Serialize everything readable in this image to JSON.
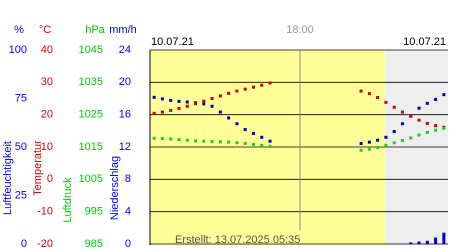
{
  "chart_data": {
    "type": "line",
    "time_label": "18:00",
    "date_left": "10.07.21",
    "date_right": "10.07.21",
    "footer": "Erstellt: 13.07.2025 05:35",
    "axes": [
      {
        "unit": "%",
        "color": "#0000ff",
        "ylim": [
          0,
          100
        ],
        "yticks": [
          0,
          25,
          50,
          75,
          100
        ]
      },
      {
        "unit": "°C",
        "color": "#dd0000",
        "ylim": [
          -20,
          40
        ],
        "yticks": [
          -20,
          -10,
          0,
          10,
          20,
          30,
          40
        ]
      },
      {
        "unit": "hPa",
        "color": "#00cc00",
        "ylim": [
          985,
          1045
        ],
        "yticks": [
          985,
          995,
          1005,
          1015,
          1025,
          1035,
          1045
        ]
      },
      {
        "unit": "mm/h",
        "color": "#0000ff",
        "ylim": [
          0,
          24
        ],
        "yticks": [
          0,
          4,
          8,
          12,
          16,
          20,
          24
        ]
      }
    ],
    "series": [
      {
        "name": "Luftfeuchtigkeit",
        "type": "line",
        "axis": 0,
        "color": "#0000bb",
        "values": [
          75.6,
          74.8,
          74,
          73.5,
          73.2,
          72.8,
          72.2,
          71,
          68,
          65,
          62,
          59,
          57,
          55,
          53,
          null,
          null,
          null,
          null,
          null,
          null,
          null,
          null,
          null,
          null,
          51.8,
          52.5,
          53.5,
          55,
          58,
          62,
          66,
          70,
          72.5,
          74.5,
          77
        ]
      },
      {
        "name": "Temperatur",
        "type": "line",
        "axis": 1,
        "color": "#cc0000",
        "values": [
          20.4,
          20.8,
          21.3,
          21.9,
          22.6,
          23.4,
          24.2,
          25,
          25.8,
          26.6,
          27.3,
          27.9,
          28.5,
          29.1,
          29.8,
          null,
          null,
          null,
          null,
          null,
          null,
          null,
          null,
          null,
          null,
          27.3,
          26.5,
          25.3,
          23.8,
          22.3,
          20.8,
          19.5,
          18.3,
          17.3,
          16.6,
          16.1
        ]
      },
      {
        "name": "Luftdruck",
        "type": "line",
        "axis": 2,
        "color": "#22cc22",
        "values": [
          1017.7,
          1017.6,
          1017.5,
          1017.3,
          1017.1,
          1016.9,
          1016.8,
          1016.7,
          1016.6,
          1016.5,
          1016.3,
          1016.1,
          1015.8,
          1015.5,
          1015.2,
          null,
          null,
          null,
          null,
          null,
          null,
          null,
          null,
          null,
          null,
          1014,
          1014.3,
          1014.8,
          1015.5,
          1016.3,
          1017,
          1017.8,
          1018.7,
          1019.5,
          1020.2,
          1020.8
        ]
      },
      {
        "name": "Niederschlag",
        "type": "bar",
        "axis": 3,
        "color": "#0000bb",
        "values": [
          0,
          0,
          0,
          0,
          0,
          0,
          0,
          0,
          0,
          0,
          0,
          0,
          0,
          0,
          0,
          null,
          null,
          null,
          null,
          null,
          null,
          null,
          null,
          null,
          null,
          0,
          0,
          0,
          0,
          0,
          0,
          0.2,
          0.3,
          0.4,
          0.8,
          1.4
        ]
      }
    ]
  }
}
